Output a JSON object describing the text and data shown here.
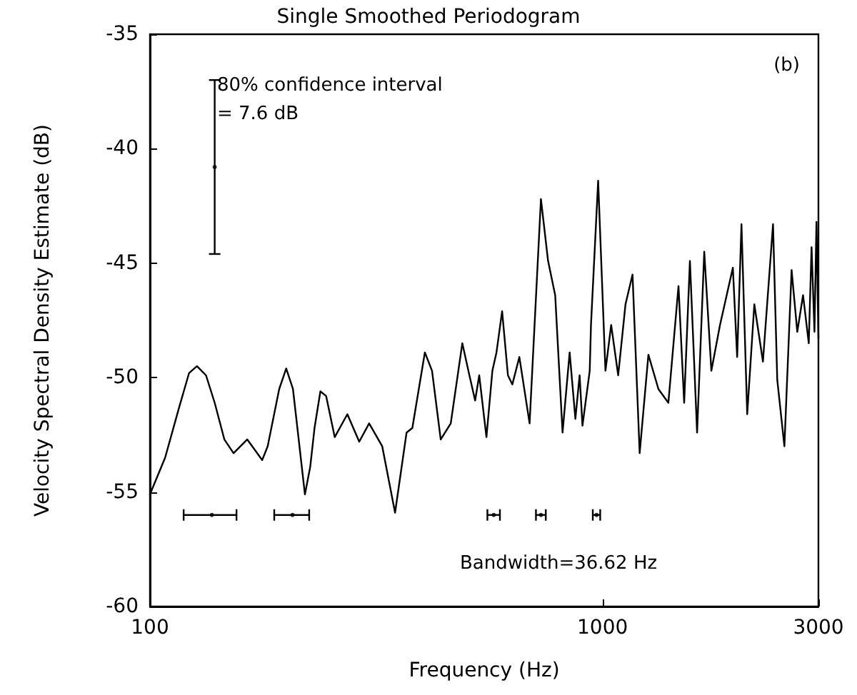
{
  "chart_data": {
    "type": "line",
    "title": "Single Smoothed Periodogram",
    "xlabel": "Frequency (Hz)",
    "ylabel": "Velocity Spectral Density Estimate (dB)",
    "log": "x",
    "xlim": [
      100,
      3000
    ],
    "xticks": [
      100,
      1000,
      3000
    ],
    "ylim": [
      -60,
      -35
    ],
    "yticks": [
      -60,
      -55,
      -50,
      -45,
      -40,
      -35
    ],
    "grid": false,
    "marker": "none",
    "line_style": "solid",
    "annotations": [
      "80% confidence interval\n= 7.6 dB",
      "Bandwidth=36.62 Hz",
      "(b)"
    ],
    "series": [
      {
        "color": "#000000",
        "x": [
          100,
          108,
          116,
          122,
          127,
          133,
          139,
          146,
          153,
          164,
          177,
          182,
          193,
          200,
          207,
          220,
          226,
          231,
          238,
          245,
          256,
          273,
          290,
          305,
          326,
          348,
          369,
          380,
          405,
          420,
          439,
          462,
          490,
          508,
          523,
          534,
          554,
          571,
          583,
          600,
          618,
          632,
          655,
          690,
          731,
          758,
          786,
          816,
          846,
          871,
          890,
          903,
          937,
          943,
          978,
          1015,
          1045,
          1083,
          1124,
          1165,
          1208,
          1263,
          1329,
          1398,
          1472,
          1515,
          1560,
          1618,
          1678,
          1740,
          1818,
          1941,
          1984,
          2028,
          2088,
          2165,
          2262,
          2381,
          2433,
          2523,
          2617,
          2694,
          2774,
          2856,
          2897,
          2940,
          2970,
          3000
        ],
        "values": [
          -55.1,
          -53.5,
          -51.3,
          -49.8,
          -49.5,
          -49.9,
          -51.1,
          -52.7,
          -53.3,
          -52.7,
          -53.6,
          -53.0,
          -50.5,
          -49.6,
          -50.5,
          -55.1,
          -53.9,
          -52.2,
          -50.6,
          -50.8,
          -52.6,
          -51.6,
          -52.8,
          -52.0,
          -53.0,
          -55.9,
          -52.4,
          -52.2,
          -48.9,
          -49.7,
          -52.7,
          -52.0,
          -48.5,
          -49.9,
          -51.0,
          -49.9,
          -52.6,
          -49.7,
          -48.9,
          -47.1,
          -49.9,
          -50.3,
          -49.1,
          -52.0,
          -42.2,
          -44.9,
          -46.4,
          -52.4,
          -48.9,
          -51.8,
          -49.9,
          -52.1,
          -49.7,
          -47.7,
          -41.4,
          -49.7,
          -47.7,
          -49.9,
          -46.8,
          -45.5,
          -53.3,
          -49.0,
          -50.5,
          -51.1,
          -46.0,
          -51.1,
          -44.9,
          -52.4,
          -44.5,
          -49.7,
          -47.7,
          -45.2,
          -49.1,
          -43.3,
          -51.6,
          -46.8,
          -49.3,
          -43.3,
          -50.1,
          -53.0,
          -45.3,
          -48.0,
          -46.4,
          -48.5,
          -44.3,
          -48.0,
          -43.2,
          -48.3
        ]
      },
      {
        "type": "scatter",
        "color": "#000000",
        "marker": "circle",
        "x": [
          139
        ],
        "values": [
          -40.8
        ],
        "errors": [
          3.8
        ]
      },
      {
        "type": "scatter",
        "color": "#000000",
        "marker": "circle",
        "x": [
          137,
          206.5,
          575,
          731,
          970
        ],
        "values": [
          -56.0,
          -56.0,
          -56.0,
          -56.0,
          -56.0
        ],
        "xerrors": [
          18.31,
          18.31,
          18.31,
          18.31,
          18.31
        ]
      }
    ]
  }
}
